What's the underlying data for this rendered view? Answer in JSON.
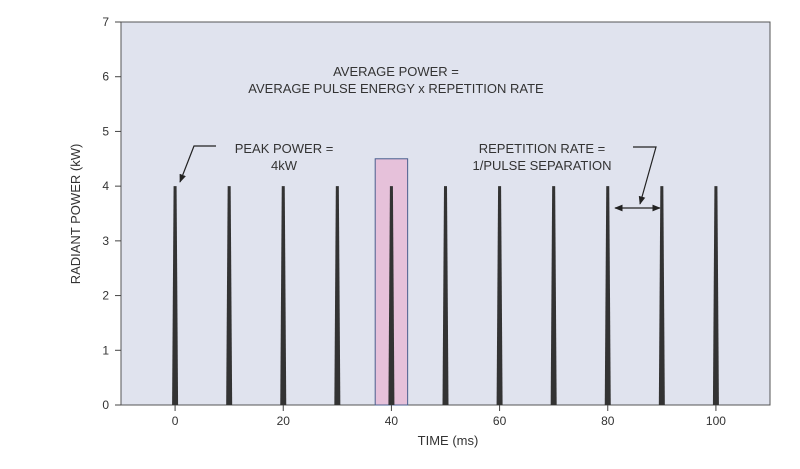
{
  "chart_data": {
    "type": "bar",
    "title": "",
    "xlabel": "TIME (ms)",
    "ylabel": "RADIANT POWER (kW)",
    "xlim": [
      -10,
      110
    ],
    "ylim": [
      0,
      7
    ],
    "xticks": [
      0,
      20,
      40,
      60,
      80,
      100
    ],
    "yticks": [
      0,
      1,
      2,
      3,
      4,
      5,
      6,
      7
    ],
    "grid": false,
    "pulses": {
      "x": [
        0,
        10,
        20,
        30,
        40,
        50,
        60,
        70,
        80,
        90,
        100
      ],
      "peak": 4
    },
    "highlight": {
      "x_range": [
        37,
        43
      ],
      "y_max": 4.5,
      "color": "#e6c1da",
      "border": "#4a5f8e"
    },
    "annotations": {
      "average_power": [
        "AVERAGE POWER =",
        "AVERAGE PULSE ENERGY x REPETITION RATE"
      ],
      "peak_power": [
        "PEAK POWER =",
        "4kW"
      ],
      "repetition_rate": [
        "REPETITION RATE =",
        "1/PULSE SEPARATION"
      ]
    },
    "colors": {
      "background": "#e0e3ee",
      "pulse": "#333333"
    }
  }
}
